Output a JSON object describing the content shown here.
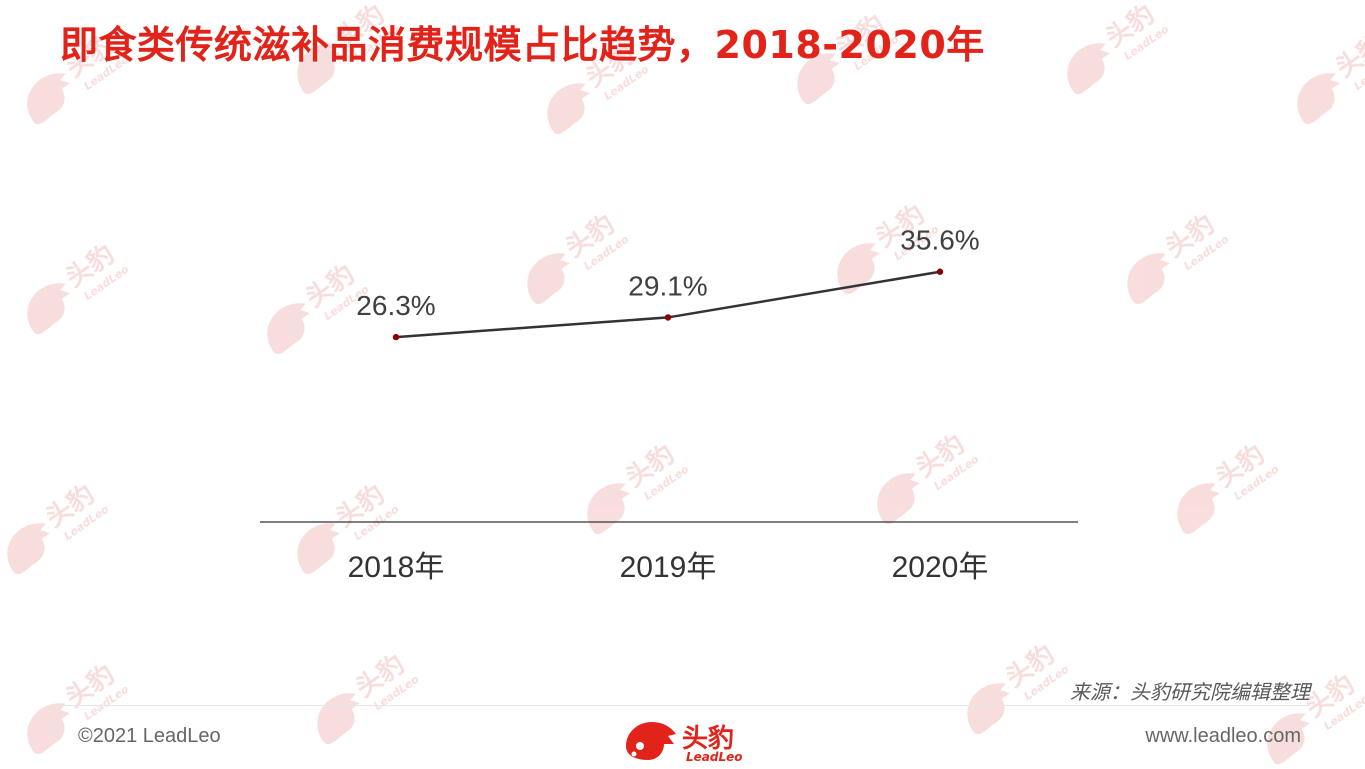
{
  "page": {
    "title": "即食类传统滋补品消费规模占比趋势，2018-2020年",
    "source": "来源：头豹研究院编辑整理",
    "copyright": "©2021 LeadLeo",
    "website": "www.leadleo.com",
    "logo_cn": "头豹",
    "logo_en": "LeadLeo",
    "watermark_cn": "头豹",
    "watermark_en": "LeadLeo"
  },
  "colors": {
    "title": "#e2231a",
    "line": "#333333",
    "marker": "#8b0000",
    "axis": "#333333",
    "watermark": "#f2c4c2"
  },
  "chart_data": {
    "type": "line",
    "categories": [
      "2018年",
      "2019年",
      "2020年"
    ],
    "values": [
      26.3,
      29.1,
      35.6
    ],
    "value_labels": [
      "26.3%",
      "29.1%",
      "35.6%"
    ],
    "title": "即食类传统滋补品消费规模占比趋势，2018-2020年",
    "xlabel": "",
    "ylabel": "",
    "ylim": [
      0,
      70
    ],
    "grid": false,
    "legend": "none"
  }
}
